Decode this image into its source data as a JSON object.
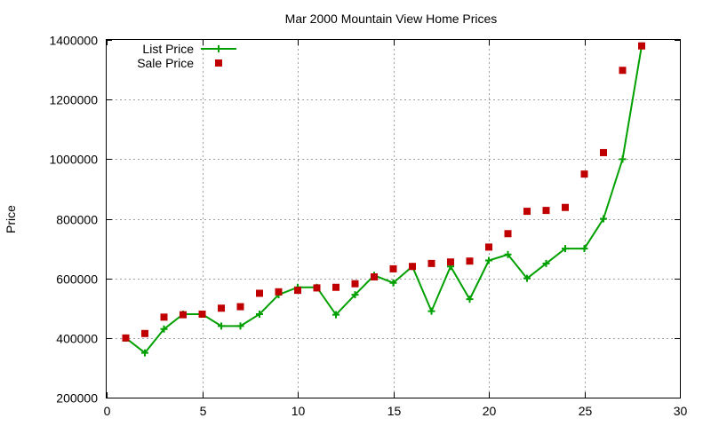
{
  "chart_data": {
    "type": "line",
    "title": "Mar 2000 Mountain View Home Prices",
    "xlabel": "",
    "ylabel": "Price",
    "xlim": [
      0,
      30
    ],
    "ylim": [
      200000,
      1400000
    ],
    "xticks": [
      0,
      5,
      10,
      15,
      20,
      25,
      30
    ],
    "yticks": [
      200000,
      400000,
      600000,
      800000,
      1000000,
      1200000,
      1400000
    ],
    "xtick_labels": [
      "0",
      "5",
      "10",
      "15",
      "20",
      "25",
      "30"
    ],
    "ytick_labels": [
      "200000",
      "400000",
      "600000",
      "800000",
      "1000000",
      "1200000",
      "1400000"
    ],
    "grid": true,
    "legend_position": "top-left",
    "x": [
      1,
      2,
      3,
      4,
      5,
      6,
      7,
      8,
      9,
      10,
      11,
      12,
      13,
      14,
      15,
      16,
      17,
      18,
      19,
      20,
      21,
      22,
      23,
      24,
      25,
      26,
      27,
      28
    ],
    "series": [
      {
        "name": "List Price",
        "style": "linespoints",
        "color": "#00a000",
        "marker": "plus",
        "values": [
          400000,
          350000,
          430000,
          480000,
          480000,
          440000,
          440000,
          480000,
          545000,
          570000,
          570000,
          478000,
          545000,
          610000,
          585000,
          640000,
          490000,
          640000,
          530000,
          660000,
          680000,
          600000,
          650000,
          700000,
          700000,
          800000,
          1000000,
          1380000
        ]
      },
      {
        "name": "Sale Price",
        "style": "points",
        "color": "#c00000",
        "marker": "square",
        "values": [
          400000,
          415000,
          470000,
          478000,
          480000,
          500000,
          505000,
          550000,
          555000,
          560000,
          568000,
          570000,
          582000,
          605000,
          632000,
          640000,
          650000,
          655000,
          658000,
          705000,
          750000,
          825000,
          828000,
          838000,
          950000,
          1022000,
          1298000,
          1380000
        ]
      }
    ]
  }
}
